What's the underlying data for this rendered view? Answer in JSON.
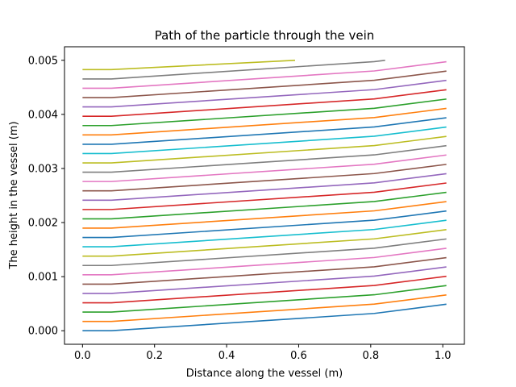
{
  "chart_data": {
    "type": "line",
    "title": "Path of the particle through the vein",
    "xlabel": "Distance along the vessel (m)",
    "ylabel": "The height in the vessel (m)",
    "xlim": [
      -0.05,
      1.06
    ],
    "ylim": [
      -0.00025,
      0.00525
    ],
    "xticks": [
      0.0,
      0.2,
      0.4,
      0.6,
      0.8,
      1.0
    ],
    "xtick_labels": [
      "0.0",
      "0.2",
      "0.4",
      "0.6",
      "0.8",
      "1.0"
    ],
    "yticks": [
      0.0,
      0.001,
      0.002,
      0.003,
      0.004,
      0.005
    ],
    "ytick_labels": [
      "0.000",
      "0.001",
      "0.002",
      "0.003",
      "0.004",
      "0.005"
    ],
    "grid": false,
    "series_colors": [
      "#1f77b4",
      "#ff7f0e",
      "#2ca02c",
      "#d62728",
      "#9467bd",
      "#8c564b",
      "#e377c2",
      "#7f7f7f",
      "#bcbd22",
      "#17becf"
    ],
    "series": [
      {
        "points": [
          [
            0,
            0.0
          ],
          [
            0.08,
            0.0
          ],
          [
            0.81,
            0.00032
          ],
          [
            1.01,
            0.00049
          ]
        ]
      },
      {
        "points": [
          [
            0,
            0.000172
          ],
          [
            0.08,
            0.000172
          ],
          [
            0.81,
            0.000492
          ],
          [
            1.01,
            0.000662
          ]
        ]
      },
      {
        "points": [
          [
            0,
            0.000345
          ],
          [
            0.08,
            0.000345
          ],
          [
            0.81,
            0.000665
          ],
          [
            1.01,
            0.000835
          ]
        ]
      },
      {
        "points": [
          [
            0,
            0.000517
          ],
          [
            0.08,
            0.000517
          ],
          [
            0.81,
            0.000837
          ],
          [
            1.01,
            0.001007
          ]
        ]
      },
      {
        "points": [
          [
            0,
            0.00069
          ],
          [
            0.08,
            0.00069
          ],
          [
            0.81,
            0.00101
          ],
          [
            1.01,
            0.00118
          ]
        ]
      },
      {
        "points": [
          [
            0,
            0.000862
          ],
          [
            0.08,
            0.000862
          ],
          [
            0.81,
            0.001182
          ],
          [
            1.01,
            0.001352
          ]
        ]
      },
      {
        "points": [
          [
            0,
            0.001034
          ],
          [
            0.08,
            0.001034
          ],
          [
            0.81,
            0.001354
          ],
          [
            1.01,
            0.001524
          ]
        ]
      },
      {
        "points": [
          [
            0,
            0.001207
          ],
          [
            0.08,
            0.001207
          ],
          [
            0.81,
            0.001527
          ],
          [
            1.01,
            0.001697
          ]
        ]
      },
      {
        "points": [
          [
            0,
            0.001379
          ],
          [
            0.08,
            0.001379
          ],
          [
            0.81,
            0.001699
          ],
          [
            1.01,
            0.001869
          ]
        ]
      },
      {
        "points": [
          [
            0,
            0.001552
          ],
          [
            0.08,
            0.001552
          ],
          [
            0.81,
            0.001872
          ],
          [
            1.01,
            0.002042
          ]
        ]
      },
      {
        "points": [
          [
            0,
            0.001724
          ],
          [
            0.08,
            0.001724
          ],
          [
            0.81,
            0.002044
          ],
          [
            1.01,
            0.002214
          ]
        ]
      },
      {
        "points": [
          [
            0,
            0.001897
          ],
          [
            0.08,
            0.001897
          ],
          [
            0.81,
            0.002217
          ],
          [
            1.01,
            0.002387
          ]
        ]
      },
      {
        "points": [
          [
            0,
            0.002069
          ],
          [
            0.08,
            0.002069
          ],
          [
            0.81,
            0.002389
          ],
          [
            1.01,
            0.002559
          ]
        ]
      },
      {
        "points": [
          [
            0,
            0.002241
          ],
          [
            0.08,
            0.002241
          ],
          [
            0.81,
            0.002561
          ],
          [
            1.01,
            0.002731
          ]
        ]
      },
      {
        "points": [
          [
            0,
            0.002414
          ],
          [
            0.08,
            0.002414
          ],
          [
            0.81,
            0.002734
          ],
          [
            1.01,
            0.002904
          ]
        ]
      },
      {
        "points": [
          [
            0,
            0.002586
          ],
          [
            0.08,
            0.002586
          ],
          [
            0.81,
            0.002906
          ],
          [
            1.01,
            0.003076
          ]
        ]
      },
      {
        "points": [
          [
            0,
            0.002759
          ],
          [
            0.08,
            0.002759
          ],
          [
            0.81,
            0.003079
          ],
          [
            1.01,
            0.003249
          ]
        ]
      },
      {
        "points": [
          [
            0,
            0.002931
          ],
          [
            0.08,
            0.002931
          ],
          [
            0.81,
            0.003251
          ],
          [
            1.01,
            0.003421
          ]
        ]
      },
      {
        "points": [
          [
            0,
            0.003103
          ],
          [
            0.08,
            0.003103
          ],
          [
            0.81,
            0.003423
          ],
          [
            1.01,
            0.003593
          ]
        ]
      },
      {
        "points": [
          [
            0,
            0.003276
          ],
          [
            0.08,
            0.003276
          ],
          [
            0.81,
            0.003596
          ],
          [
            1.01,
            0.003766
          ]
        ]
      },
      {
        "points": [
          [
            0,
            0.003448
          ],
          [
            0.08,
            0.003448
          ],
          [
            0.81,
            0.003768
          ],
          [
            1.01,
            0.003938
          ]
        ]
      },
      {
        "points": [
          [
            0,
            0.003621
          ],
          [
            0.08,
            0.003621
          ],
          [
            0.81,
            0.003941
          ],
          [
            1.01,
            0.004111
          ]
        ]
      },
      {
        "points": [
          [
            0,
            0.003793
          ],
          [
            0.08,
            0.003793
          ],
          [
            0.81,
            0.004113
          ],
          [
            1.01,
            0.004283
          ]
        ]
      },
      {
        "points": [
          [
            0,
            0.003966
          ],
          [
            0.08,
            0.003966
          ],
          [
            0.81,
            0.004286
          ],
          [
            1.01,
            0.004456
          ]
        ]
      },
      {
        "points": [
          [
            0,
            0.004138
          ],
          [
            0.08,
            0.004138
          ],
          [
            0.81,
            0.004458
          ],
          [
            1.01,
            0.004628
          ]
        ]
      },
      {
        "points": [
          [
            0,
            0.00431
          ],
          [
            0.08,
            0.00431
          ],
          [
            0.81,
            0.00463
          ],
          [
            1.01,
            0.0048
          ]
        ]
      },
      {
        "points": [
          [
            0,
            0.004483
          ],
          [
            0.08,
            0.004483
          ],
          [
            0.81,
            0.004803
          ],
          [
            1.01,
            0.004973
          ]
        ]
      },
      {
        "points": [
          [
            0,
            0.004655
          ],
          [
            0.08,
            0.004655
          ],
          [
            0.81,
            0.004975
          ],
          [
            0.84,
            0.005
          ]
        ]
      },
      {
        "points": [
          [
            0,
            0.004828
          ],
          [
            0.08,
            0.004828
          ],
          [
            0.59,
            0.005
          ]
        ]
      }
    ]
  }
}
